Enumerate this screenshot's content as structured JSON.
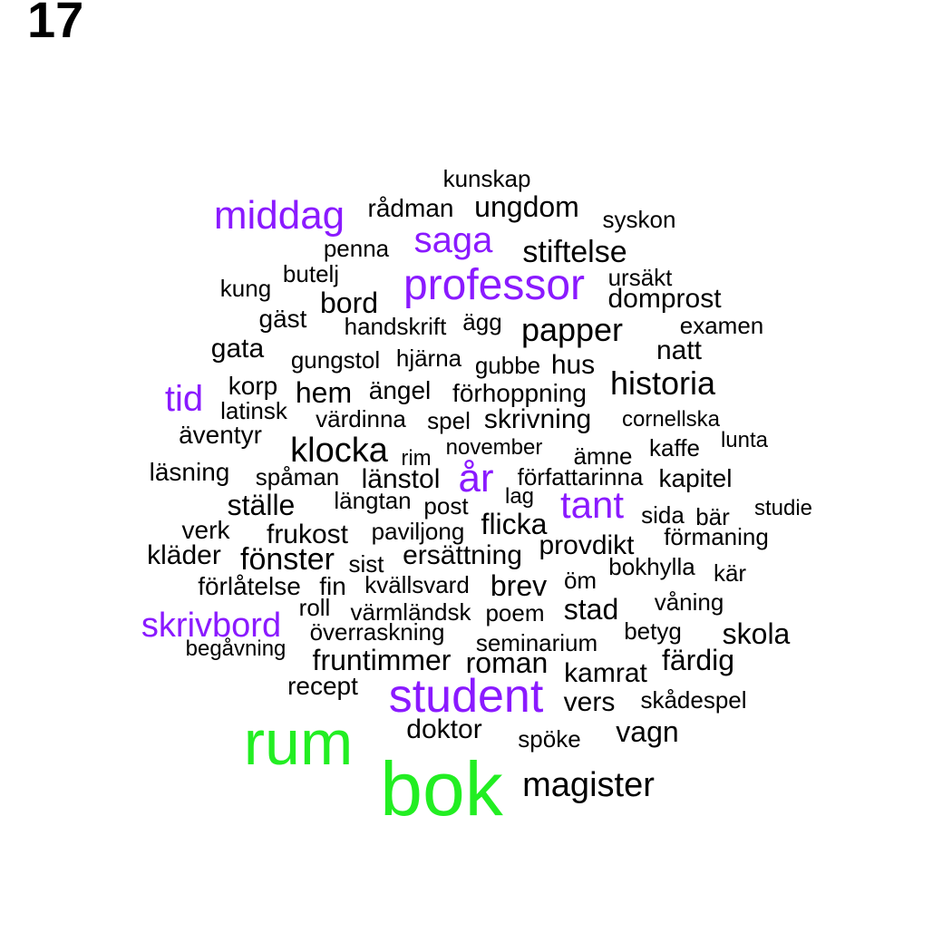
{
  "page_number": "17",
  "colors": {
    "top": "#22ee22",
    "high": "#8a1aff",
    "base": "#000000"
  },
  "words": [
    {
      "text": "kunskap",
      "tier": "base"
    },
    {
      "text": "middag",
      "tier": "high"
    },
    {
      "text": "rådman",
      "tier": "base"
    },
    {
      "text": "ungdom",
      "tier": "base"
    },
    {
      "text": "syskon",
      "tier": "base"
    },
    {
      "text": "saga",
      "tier": "high"
    },
    {
      "text": "penna",
      "tier": "base"
    },
    {
      "text": "stiftelse",
      "tier": "base"
    },
    {
      "text": "butelj",
      "tier": "base"
    },
    {
      "text": "professor",
      "tier": "high"
    },
    {
      "text": "ursäkt",
      "tier": "base"
    },
    {
      "text": "kung",
      "tier": "base"
    },
    {
      "text": "bord",
      "tier": "base"
    },
    {
      "text": "domprost",
      "tier": "base"
    },
    {
      "text": "gäst",
      "tier": "base"
    },
    {
      "text": "handskrift",
      "tier": "base"
    },
    {
      "text": "ägg",
      "tier": "base"
    },
    {
      "text": "papper",
      "tier": "base"
    },
    {
      "text": "examen",
      "tier": "base"
    },
    {
      "text": "gata",
      "tier": "base"
    },
    {
      "text": "natt",
      "tier": "base"
    },
    {
      "text": "gungstol",
      "tier": "base"
    },
    {
      "text": "hjärna",
      "tier": "base"
    },
    {
      "text": "gubbe",
      "tier": "base"
    },
    {
      "text": "hus",
      "tier": "base"
    },
    {
      "text": "historia",
      "tier": "base"
    },
    {
      "text": "korp",
      "tier": "base"
    },
    {
      "text": "tid",
      "tier": "high"
    },
    {
      "text": "hem",
      "tier": "base"
    },
    {
      "text": "ängel",
      "tier": "base"
    },
    {
      "text": "förhoppning",
      "tier": "base"
    },
    {
      "text": "latinsk",
      "tier": "base"
    },
    {
      "text": "värdinna",
      "tier": "base"
    },
    {
      "text": "spel",
      "tier": "base"
    },
    {
      "text": "skrivning",
      "tier": "base"
    },
    {
      "text": "cornellska",
      "tier": "base"
    },
    {
      "text": "äventyr",
      "tier": "base"
    },
    {
      "text": "lunta",
      "tier": "base"
    },
    {
      "text": "klocka",
      "tier": "base"
    },
    {
      "text": "rim",
      "tier": "base"
    },
    {
      "text": "november",
      "tier": "base"
    },
    {
      "text": "ämne",
      "tier": "base"
    },
    {
      "text": "kaffe",
      "tier": "base"
    },
    {
      "text": "läsning",
      "tier": "base"
    },
    {
      "text": "spåman",
      "tier": "base"
    },
    {
      "text": "länstol",
      "tier": "base"
    },
    {
      "text": "år",
      "tier": "high"
    },
    {
      "text": "författarinna",
      "tier": "base"
    },
    {
      "text": "kapitel",
      "tier": "base"
    },
    {
      "text": "ställe",
      "tier": "base"
    },
    {
      "text": "längtan",
      "tier": "base"
    },
    {
      "text": "post",
      "tier": "base"
    },
    {
      "text": "lag",
      "tier": "base"
    },
    {
      "text": "tant",
      "tier": "high"
    },
    {
      "text": "studie",
      "tier": "base"
    },
    {
      "text": "sida",
      "tier": "base"
    },
    {
      "text": "bär",
      "tier": "base"
    },
    {
      "text": "verk",
      "tier": "base"
    },
    {
      "text": "frukost",
      "tier": "base"
    },
    {
      "text": "paviljong",
      "tier": "base"
    },
    {
      "text": "flicka",
      "tier": "base"
    },
    {
      "text": "förmaning",
      "tier": "base"
    },
    {
      "text": "provdikt",
      "tier": "base"
    },
    {
      "text": "kläder",
      "tier": "base"
    },
    {
      "text": "fönster",
      "tier": "base"
    },
    {
      "text": "sist",
      "tier": "base"
    },
    {
      "text": "ersättning",
      "tier": "base"
    },
    {
      "text": "bokhylla",
      "tier": "base"
    },
    {
      "text": "kär",
      "tier": "base"
    },
    {
      "text": "förlåtelse",
      "tier": "base"
    },
    {
      "text": "fin",
      "tier": "base"
    },
    {
      "text": "kvällsvard",
      "tier": "base"
    },
    {
      "text": "brev",
      "tier": "base"
    },
    {
      "text": "öm",
      "tier": "base"
    },
    {
      "text": "roll",
      "tier": "base"
    },
    {
      "text": "värmländsk",
      "tier": "base"
    },
    {
      "text": "poem",
      "tier": "base"
    },
    {
      "text": "stad",
      "tier": "base"
    },
    {
      "text": "våning",
      "tier": "base"
    },
    {
      "text": "skrivbord",
      "tier": "high"
    },
    {
      "text": "överraskning",
      "tier": "base"
    },
    {
      "text": "betyg",
      "tier": "base"
    },
    {
      "text": "skola",
      "tier": "base"
    },
    {
      "text": "begåvning",
      "tier": "base"
    },
    {
      "text": "seminarium",
      "tier": "base"
    },
    {
      "text": "fruntimmer",
      "tier": "base"
    },
    {
      "text": "roman",
      "tier": "base"
    },
    {
      "text": "färdig",
      "tier": "base"
    },
    {
      "text": "kamrat",
      "tier": "base"
    },
    {
      "text": "recept",
      "tier": "base"
    },
    {
      "text": "student",
      "tier": "high"
    },
    {
      "text": "vers",
      "tier": "base"
    },
    {
      "text": "skådespel",
      "tier": "base"
    },
    {
      "text": "rum",
      "tier": "top"
    },
    {
      "text": "doktor",
      "tier": "base"
    },
    {
      "text": "vagn",
      "tier": "base"
    },
    {
      "text": "spöke",
      "tier": "base"
    },
    {
      "text": "bok",
      "tier": "top"
    },
    {
      "text": "magister",
      "tier": "base"
    }
  ]
}
